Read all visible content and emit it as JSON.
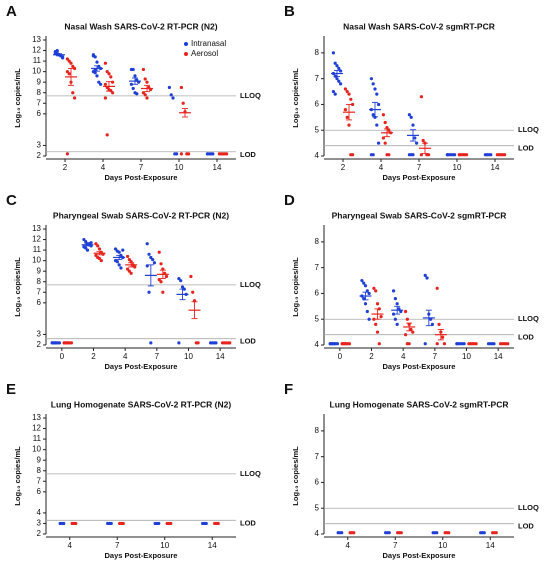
{
  "chart_data": [
    {
      "type": "scatter",
      "letter": "A",
      "title": "Nasal Wash SARS-CoV-2 RT-PCR (N2)",
      "ylabel": "Log₁₀ copies/mL",
      "xlabel": "Days Post-Exposure",
      "categories": [
        "2",
        "4",
        "7",
        "10",
        "14"
      ],
      "ylim": [
        2,
        13
      ],
      "yticks": [
        2,
        3,
        6,
        7,
        8,
        9,
        10,
        11,
        12,
        13
      ],
      "legend": "top-right",
      "lines": [
        {
          "label": "LLOQ",
          "value": 7.7
        },
        {
          "label": "LOD",
          "value": 2.4
        }
      ],
      "series": [
        {
          "name": "Intranasal",
          "color": "#1f3fd6",
          "values": [
            [
              11.9,
              11.7,
              11.6,
              11.5,
              11.4,
              11.8,
              12.0,
              11.6,
              11.5,
              11.3,
              11.7,
              11.9
            ],
            [
              11.6,
              11.4,
              10.9,
              10.5,
              10.3,
              10.0,
              9.9,
              9.6,
              9.0,
              8.8,
              11.5,
              10.2
            ],
            [
              10.2,
              10.2,
              9.6,
              9.2,
              9.0,
              8.8,
              8.4,
              8.0,
              7.9
            ],
            [
              8.5,
              7.8,
              7.5,
              2.2,
              2.2
            ],
            [
              2.2,
              2.2,
              2.2,
              2.2
            ]
          ],
          "means": [
            11.6,
            10.3,
            9.1,
            null,
            null
          ],
          "errors": [
            0.1,
            0.25,
            0.3,
            null,
            null
          ]
        },
        {
          "name": "Aerosol",
          "color": "#e8231d",
          "values": [
            [
              11.2,
              11.0,
              10.8,
              10.5,
              10.3,
              10.0,
              9.8,
              9.0,
              8.0,
              7.5,
              2.2
            ],
            [
              10.8,
              10.0,
              9.8,
              9.5,
              9.0,
              8.8,
              8.5,
              8.3,
              8.2,
              8.0,
              7.5,
              4.0
            ],
            [
              10.2,
              9.3,
              9.0,
              8.5,
              8.3,
              8.0,
              7.8,
              7.5
            ],
            [
              8.5,
              7.0,
              6.2,
              2.2,
              2.2,
              2.2
            ],
            [
              2.2,
              2.2,
              2.2,
              2.2,
              2.2
            ]
          ],
          "means": [
            9.5,
            8.6,
            8.4,
            6.1,
            null
          ],
          "errors": [
            0.8,
            0.45,
            0.3,
            0.4,
            null
          ]
        }
      ]
    },
    {
      "type": "scatter",
      "letter": "B",
      "title": "Nasal Wash SARS-CoV-2 sgmRT-PCR",
      "ylabel": "Log₁₀ copies/mL",
      "xlabel": "Days Post-Exposure",
      "categories": [
        "2",
        "4",
        "7",
        "10",
        "14"
      ],
      "ylim": [
        4,
        8.5
      ],
      "yticks": [
        4,
        5,
        6,
        7,
        8
      ],
      "lines": [
        {
          "label": "LLOQ",
          "value": 5.0
        },
        {
          "label": "LOD",
          "value": 4.4
        }
      ],
      "series": [
        {
          "color": "#1f3fd6",
          "values": [
            [
              8.0,
              7.6,
              7.5,
              7.4,
              7.3,
              7.2,
              7.1,
              7.0,
              6.9,
              6.8,
              6.5,
              6.4
            ],
            [
              7.0,
              6.8,
              6.6,
              6.4,
              6.0,
              5.8,
              5.6,
              5.5,
              5.2,
              4.5,
              4.05,
              4.05
            ],
            [
              5.6,
              5.5,
              5.2,
              4.7,
              4.5,
              4.05,
              4.05,
              4.05
            ],
            [
              4.05,
              4.05,
              4.05,
              4.05,
              4.05,
              4.05
            ],
            [
              4.05,
              4.05,
              4.05,
              4.05
            ]
          ],
          "means": [
            7.2,
            5.8,
            4.8,
            null,
            null
          ],
          "errors": [
            0.12,
            0.28,
            0.22,
            null,
            null
          ]
        },
        {
          "color": "#e8231d",
          "values": [
            [
              6.6,
              6.5,
              6.4,
              6.2,
              6.0,
              5.8,
              5.5,
              5.2,
              4.05,
              4.05
            ],
            [
              5.6,
              5.3,
              5.1,
              5.0,
              4.9,
              4.7,
              4.5,
              4.05,
              4.05
            ],
            [
              6.3,
              4.6,
              4.5,
              4.05,
              4.05,
              4.05
            ],
            [
              4.05,
              4.05,
              4.05,
              4.05,
              4.05,
              4.05
            ],
            [
              4.05,
              4.05,
              4.05,
              4.05,
              4.05
            ]
          ],
          "means": [
            5.7,
            4.9,
            4.3,
            null,
            null
          ],
          "errors": [
            0.3,
            0.15,
            0.2,
            null,
            null
          ]
        }
      ]
    },
    {
      "type": "scatter",
      "letter": "C",
      "title": "Pharyngeal Swab SARS-CoV-2 RT-PCR (N2)",
      "ylabel": "Log₁₀ copies/mL",
      "xlabel": "Days Post-Exposure",
      "categories": [
        "0",
        "2",
        "4",
        "7",
        "10",
        "14"
      ],
      "ylim": [
        2,
        13
      ],
      "yticks": [
        2,
        3,
        6,
        7,
        8,
        9,
        10,
        11,
        12,
        13
      ],
      "lines": [
        {
          "label": "LLOQ",
          "value": 7.7
        },
        {
          "label": "LOD",
          "value": 2.6
        }
      ],
      "series": [
        {
          "color": "#1f3fd6",
          "values": [
            [
              2.2,
              2.2,
              2.2,
              2.2,
              2.2,
              2.2,
              2.2,
              2.2
            ],
            [
              12.0,
              11.8,
              11.6,
              11.5,
              11.4,
              11.3,
              11.2,
              11.0,
              11.6,
              11.7
            ],
            [
              11.1,
              10.9,
              10.8,
              10.5,
              10.3,
              10.0,
              9.9,
              9.6,
              9.3,
              11.0
            ],
            [
              11.6,
              10.6,
              10.3,
              10.1,
              9.8,
              9.5,
              7.0,
              2.2
            ],
            [
              8.3,
              8.1,
              7.5,
              7.3,
              6.8,
              2.2
            ],
            [
              2.2,
              2.2,
              2.2,
              2.2
            ]
          ],
          "means": [
            null,
            11.5,
            10.3,
            8.6,
            6.8,
            null
          ],
          "errors": [
            null,
            0.1,
            0.2,
            1.0,
            0.5,
            null
          ]
        },
        {
          "color": "#e8231d",
          "values": [
            [
              2.2,
              2.2,
              2.2,
              2.2,
              2.2,
              2.2,
              2.2,
              2.2
            ],
            [
              11.6,
              11.4,
              11.1,
              10.8,
              10.6,
              10.5,
              10.3,
              10.2,
              10.0
            ],
            [
              10.4,
              10.1,
              9.9,
              9.6,
              9.4,
              9.2,
              9.0,
              8.8
            ],
            [
              10.8,
              9.7,
              9.2,
              8.8,
              8.5,
              8.2,
              8.0,
              7.0
            ],
            [
              8.5,
              7.0,
              6.2,
              2.2,
              2.2
            ],
            [
              2.2,
              2.2,
              2.2,
              2.2,
              2.2
            ]
          ],
          "means": [
            null,
            10.7,
            9.6,
            8.7,
            5.3,
            null
          ],
          "errors": [
            null,
            0.15,
            0.2,
            0.4,
            0.8,
            null
          ]
        }
      ]
    },
    {
      "type": "scatter",
      "letter": "D",
      "title": "Pharyngeal Swab SARS-CoV-2 sgmRT-PCR",
      "ylabel": "Log₁₀ copies/mL",
      "xlabel": "Days Post-Exposure",
      "categories": [
        "0",
        "2",
        "4",
        "7",
        "10",
        "14"
      ],
      "ylim": [
        4,
        8.5
      ],
      "yticks": [
        4,
        5,
        6,
        7,
        8
      ],
      "lines": [
        {
          "label": "LLOQ",
          "value": 5.0
        },
        {
          "label": "LOD",
          "value": 4.4
        }
      ],
      "series": [
        {
          "color": "#1f3fd6",
          "values": [
            [
              4.05,
              4.05,
              4.05,
              4.05,
              4.05,
              4.05,
              4.05,
              4.05
            ],
            [
              6.5,
              6.4,
              6.3,
              6.1,
              6.0,
              5.9,
              5.8,
              5.6,
              5.3,
              5.0
            ],
            [
              6.1,
              5.8,
              5.6,
              5.4,
              5.3,
              5.2,
              5.0,
              4.8
            ],
            [
              6.7,
              6.6,
              5.2,
              5.0,
              4.8,
              4.05
            ],
            [
              4.05,
              4.05,
              4.05,
              4.05,
              4.05,
              4.05
            ],
            [
              4.05,
              4.05,
              4.05,
              4.05
            ]
          ],
          "means": [
            null,
            5.9,
            5.35,
            5.05,
            null,
            null
          ],
          "errors": [
            null,
            0.15,
            0.15,
            0.3,
            null,
            null
          ]
        },
        {
          "color": "#e8231d",
          "values": [
            [
              4.05,
              4.05,
              4.05,
              4.05,
              4.05,
              4.05,
              4.05,
              4.05
            ],
            [
              6.2,
              6.1,
              5.6,
              5.4,
              5.1,
              5.0,
              4.8,
              4.5,
              4.05
            ],
            [
              5.3,
              5.0,
              4.8,
              4.6,
              4.5,
              4.4,
              4.05,
              4.05
            ],
            [
              6.2,
              4.8,
              4.5,
              4.3,
              4.05,
              4.05
            ],
            [
              4.05,
              4.05,
              4.05,
              4.05,
              4.05
            ],
            [
              4.05,
              4.05,
              4.05,
              4.05,
              4.05
            ]
          ],
          "means": [
            null,
            5.2,
            4.7,
            4.4,
            null,
            null
          ],
          "errors": [
            null,
            0.2,
            0.15,
            0.2,
            null,
            null
          ]
        }
      ]
    },
    {
      "type": "scatter",
      "letter": "E",
      "title": "Lung Homogenate SARS-CoV-2 RT-PCR (N2)",
      "ylabel": "Log₁₀ copies/mL",
      "xlabel": "Days Post-Exposure",
      "categories": [
        "4",
        "7",
        "10",
        "14"
      ],
      "ylim": [
        2,
        13
      ],
      "yticks": [
        2,
        3,
        4,
        6,
        7,
        8,
        9,
        10,
        11,
        12,
        13
      ],
      "lines": [
        {
          "label": "LLOQ",
          "value": 7.7
        },
        {
          "label": "LOD",
          "value": 3.3
        }
      ],
      "series": [
        {
          "color": "#1f3fd6",
          "values": [
            [
              3.0,
              3.0,
              3.0
            ],
            [
              3.0,
              3.0,
              3.0
            ],
            [
              3.0,
              3.0,
              3.0
            ],
            [
              3.0,
              3.0,
              3.0
            ]
          ]
        },
        {
          "color": "#e8231d",
          "values": [
            [
              3.0,
              3.0,
              3.0
            ],
            [
              3.0,
              3.0,
              3.0
            ],
            [
              3.0,
              3.0,
              3.0
            ],
            [
              3.0,
              3.0,
              3.0
            ]
          ]
        }
      ]
    },
    {
      "type": "scatter",
      "letter": "F",
      "title": "Lung Homogenate SARS-CoV-2 sgmRT-PCR",
      "ylabel": "Log₁₀ copies/mL",
      "xlabel": "Days Post-Exposure",
      "categories": [
        "4",
        "7",
        "10",
        "14"
      ],
      "ylim": [
        4,
        8.5
      ],
      "yticks": [
        4,
        5,
        6,
        7,
        8
      ],
      "lines": [
        {
          "label": "LLOQ",
          "value": 5.0
        },
        {
          "label": "LOD",
          "value": 4.4
        }
      ],
      "series": [
        {
          "color": "#1f3fd6",
          "values": [
            [
              4.05,
              4.05,
              4.05
            ],
            [
              4.05,
              4.05,
              4.05
            ],
            [
              4.05,
              4.05,
              4.05
            ],
            [
              4.05,
              4.05,
              4.05
            ]
          ]
        },
        {
          "color": "#e8231d",
          "values": [
            [
              4.05,
              4.05,
              4.05
            ],
            [
              4.05,
              4.05,
              4.05
            ],
            [
              4.05,
              4.05,
              4.05
            ],
            [
              4.05,
              4.05,
              4.05
            ]
          ]
        }
      ]
    }
  ]
}
